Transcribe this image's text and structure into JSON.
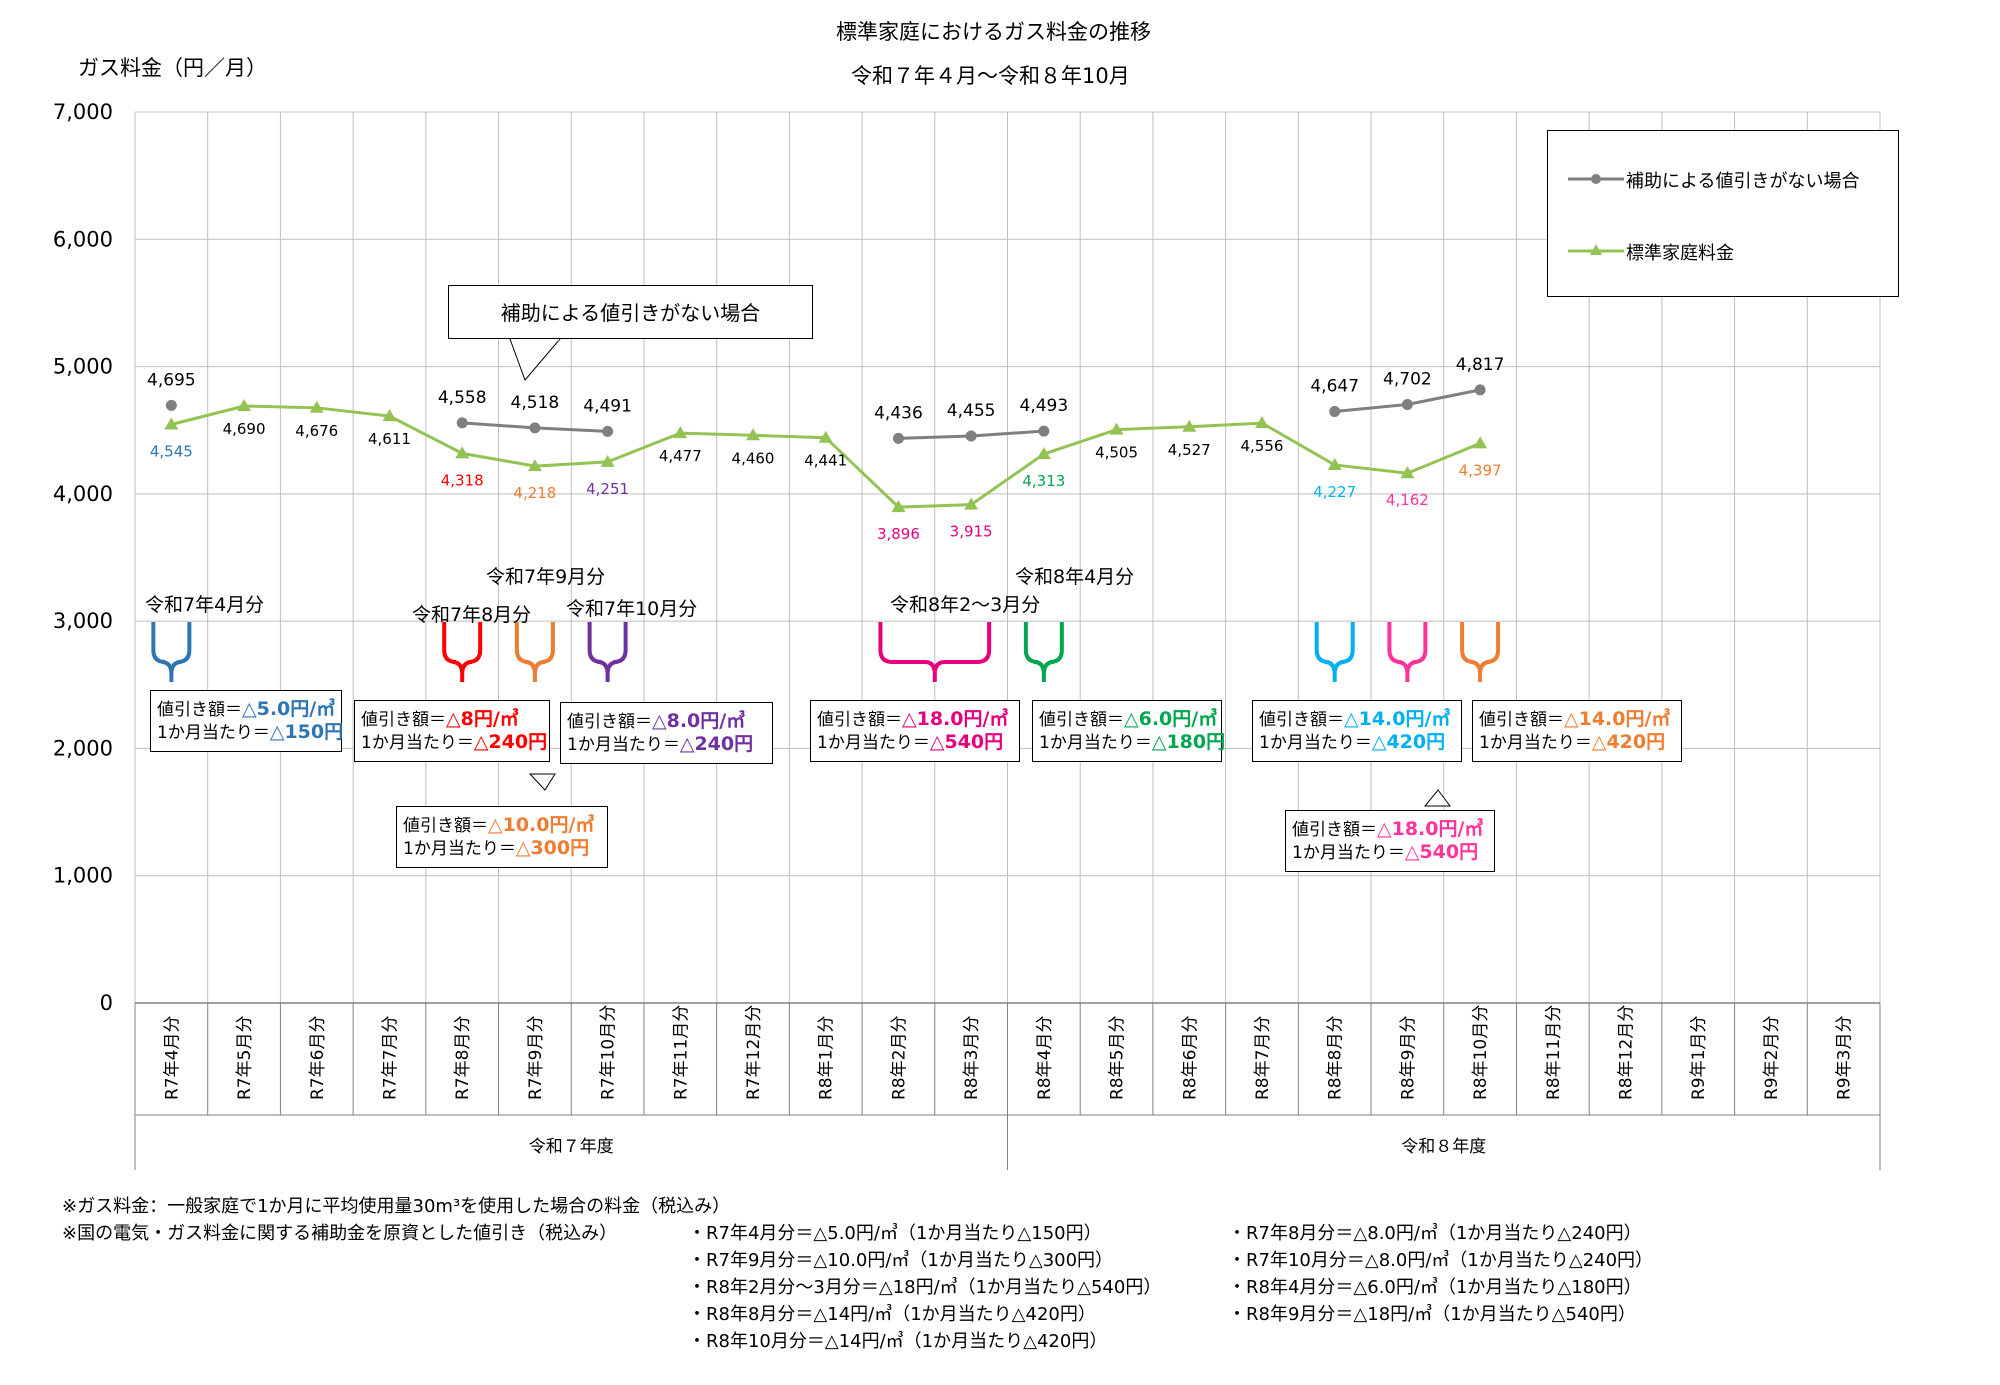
{
  "chart_data": {
    "type": "line",
    "title": "標準家庭におけるガス料金の推移",
    "subtitle": "令和７年４月～令和８年10月",
    "ylabel": "ガス料金（円／月）",
    "ylim": [
      0,
      7000
    ],
    "yticks": [
      "0",
      "1,000",
      "2,000",
      "3,000",
      "4,000",
      "5,000",
      "6,000",
      "7,000"
    ],
    "grid": true,
    "legend_position": "top-right",
    "categories": [
      "R7年4月分",
      "R7年5月分",
      "R7年6月分",
      "R7年7月分",
      "R7年8月分",
      "R7年9月分",
      "R7年10月分",
      "R7年11月分",
      "R7年12月分",
      "R8年1月分",
      "R8年2月分",
      "R8年3月分",
      "R8年4月分",
      "R8年5月分",
      "R8年6月分",
      "R8年7月分",
      "R8年8月分",
      "R8年9月分",
      "R8年10月分",
      "R8年11月分",
      "R8年12月分",
      "R9年1月分",
      "R9年2月分",
      "R9年3月分"
    ],
    "fiscal_years": [
      "令和７年度",
      "令和８年度"
    ],
    "series": [
      {
        "name": "補助による値引きがない場合",
        "color": "#7f7f7f",
        "marker": "circle",
        "values": [
          4695,
          null,
          null,
          null,
          4558,
          4518,
          4491,
          null,
          null,
          null,
          4436,
          4455,
          4493,
          null,
          null,
          null,
          4647,
          4702,
          4817,
          null,
          null,
          null,
          null,
          null
        ],
        "labels": [
          "4,695",
          null,
          null,
          null,
          "4,558",
          "4,518",
          "4,491",
          null,
          null,
          null,
          "4,436",
          "4,455",
          "4,493",
          null,
          null,
          null,
          "4,647",
          "4,702",
          "4,817",
          null,
          null,
          null,
          null,
          null
        ]
      },
      {
        "name": "標準家庭料金",
        "color": "#92c353",
        "marker": "triangle",
        "values": [
          4545,
          4690,
          4676,
          4611,
          4318,
          4218,
          4251,
          4477,
          4460,
          4441,
          3896,
          3915,
          4313,
          4505,
          4527,
          4556,
          4227,
          4162,
          4397,
          null,
          null,
          null,
          null,
          null
        ],
        "labels": [
          "4,545",
          "4,690",
          "4,676",
          "4,611",
          "4,318",
          "4,218",
          "4,251",
          "4,477",
          "4,460",
          "4,441",
          "3,896",
          "3,915",
          "4,313",
          "4,505",
          "4,527",
          "4,556",
          "4,227",
          "4,162",
          "4,397",
          null,
          null,
          null,
          null,
          null
        ],
        "label_colors": [
          "#2e75b6",
          "#000000",
          "#000000",
          "#000000",
          "#ff0000",
          "#ed7d31",
          "#7030a0",
          "#000000",
          "#000000",
          "#000000",
          "#e6007e",
          "#e6007e",
          "#00a650",
          "#000000",
          "#000000",
          "#000000",
          "#00b0f0",
          "#ff3399",
          "#ed7d31",
          null,
          null,
          null,
          null,
          null
        ]
      }
    ],
    "callout": "補助による値引きがない場合",
    "annotations": [
      {
        "period": "令和7年4月分",
        "color": "#2e75b6",
        "rate": "△5.0円/㎥",
        "month": "△150円"
      },
      {
        "period": "令和7年8月分",
        "color": "#ff0000",
        "rate": "△8円/㎥",
        "month": "△240円"
      },
      {
        "period": "令和7年9月分",
        "color": "#ed7d31",
        "rate": "△10.0円/㎥",
        "month": "△300円"
      },
      {
        "period": "令和7年10月分",
        "color": "#7030a0",
        "rate": "△8.0円/㎥",
        "month": "△240円"
      },
      {
        "period": "令和8年2～3月分",
        "color": "#e6007e",
        "rate": "△18.0円/㎥",
        "month": "△540円"
      },
      {
        "period": "令和8年4月分",
        "color": "#00a650",
        "rate": "△6.0円/㎥",
        "month": "△180円"
      },
      {
        "period": "",
        "color": "#00b0f0",
        "rate": "△14.0円/㎥",
        "month": "△420円"
      },
      {
        "period": "",
        "color": "#ff3399",
        "rate": "△18.0円/㎥",
        "month": "△540円"
      },
      {
        "period": "",
        "color": "#ed7d31",
        "rate": "△14.0円/㎥",
        "month": "△420円"
      }
    ],
    "box_prefix_rate": "値引き額＝",
    "box_prefix_month": "1か月当たり＝"
  },
  "notes": {
    "line1": "※ガス料金：一般家庭で1か月に平均使用量30m³を使用した場合の料金（税込み）",
    "line2": "※国の電気・ガス料金に関する補助金を原資とした値引き（税込み）",
    "items_left": [
      "・R7年4月分＝△5.0円/㎥（1か月当たり△150円）",
      "・R7年9月分＝△10.0円/㎥（1か月当たり△300円）",
      "・R8年2月分～3月分＝△18円/㎥（1か月当たり△540円）",
      "・R8年8月分＝△14円/㎥（1か月当たり△420円）",
      "・R8年10月分＝△14円/㎥（1か月当たり△420円）"
    ],
    "items_right": [
      "・R7年8月分＝△8.0円/㎥（1か月当たり△240円）",
      "・R7年10月分＝△8.0円/㎥（1か月当たり△240円）",
      "・R8年4月分＝△6.0円/㎥（1か月当たり△180円）",
      "・R8年9月分＝△18円/㎥（1か月当たり△540円）"
    ]
  }
}
